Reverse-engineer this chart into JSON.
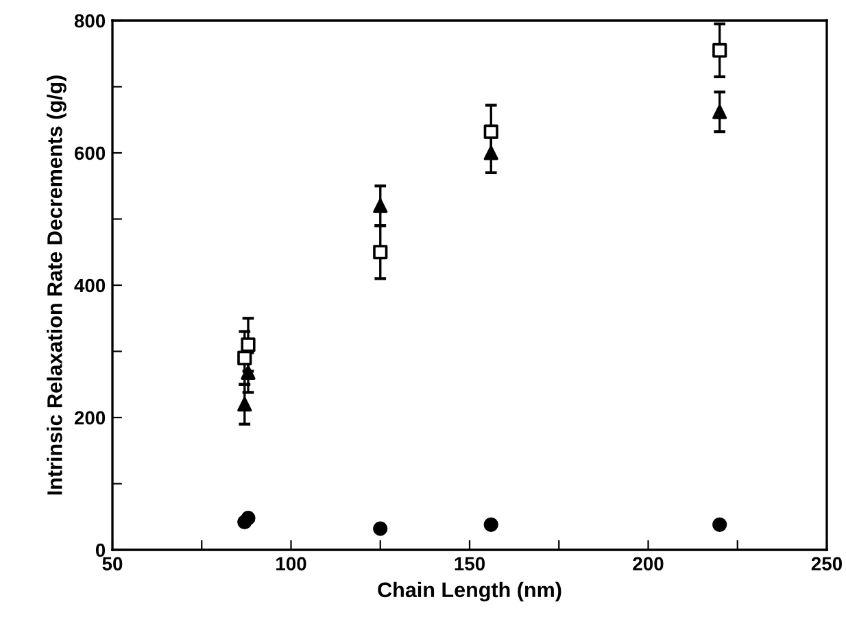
{
  "chart_data": {
    "type": "scatter",
    "xlabel": "Chain Length (nm)",
    "ylabel": "Intrinsic Relaxation Rate Decrements (g/g)",
    "xlim": [
      50,
      250
    ],
    "ylim": [
      0,
      800
    ],
    "xticks": [
      50,
      {
        "value": 75,
        "label": null
      },
      100,
      {
        "value": 125,
        "label": null
      },
      150,
      {
        "value": 175,
        "label": null
      },
      200,
      {
        "value": 225,
        "label": null
      },
      250
    ],
    "yticks": [
      0,
      {
        "value": 100,
        "label": null
      },
      200,
      {
        "value": 300,
        "label": null
      },
      400,
      {
        "value": 500,
        "label": null
      },
      600,
      {
        "value": 700,
        "label": null
      },
      800
    ],
    "grid": false,
    "legend": false,
    "series": [
      {
        "color": "#000000",
        "marker": "square",
        "x": [
          87,
          88,
          125,
          156,
          220
        ],
        "values": [
          290,
          310,
          450,
          632,
          755
        ],
        "errors": [
          40,
          40,
          40,
          40,
          40
        ]
      },
      {
        "color": "#000000",
        "marker": "triangle",
        "x": [
          87,
          88,
          125,
          156,
          220
        ],
        "values": [
          220,
          268,
          520,
          600,
          662
        ],
        "errors": [
          30,
          30,
          30,
          30,
          30
        ]
      },
      {
        "color": "#000000",
        "marker": "circle",
        "x": [
          87,
          88,
          125,
          156,
          220
        ],
        "values": [
          42,
          48,
          32,
          38,
          38
        ]
      }
    ]
  }
}
